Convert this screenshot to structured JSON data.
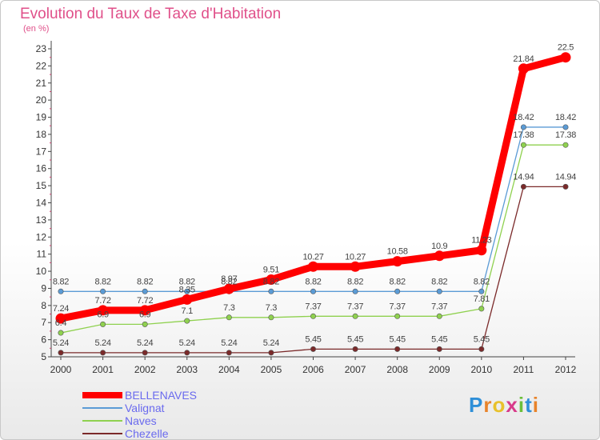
{
  "header": {
    "title": "Evolution du Taux de Taxe d'Habitation",
    "subtitle": "(en %)"
  },
  "logo": {
    "text": "Proxiti",
    "colors": [
      "#2e8fd8",
      "#e8832a",
      "#e8c12a",
      "#d83a8a",
      "#6bbf3a",
      "#2e8fd8",
      "#e8832a"
    ]
  },
  "chart_data": {
    "type": "line",
    "title": "Evolution du Taux de Taxe d'Habitation",
    "ylabel": "(en %)",
    "xlabel": "",
    "categories": [
      "2000",
      "2001",
      "2002",
      "2003",
      "2004",
      "2005",
      "2006",
      "2007",
      "2008",
      "2009",
      "2010",
      "2011",
      "2012"
    ],
    "ylim": [
      5,
      23
    ],
    "yticks": [
      "5",
      "6",
      "7",
      "8",
      "9",
      "10",
      "11",
      "12",
      "13",
      "14",
      "15",
      "16",
      "17",
      "18",
      "19",
      "20",
      "21",
      "22",
      "23"
    ],
    "grid": false,
    "legend_position": "bottom-left",
    "series": [
      {
        "name": "BELLENAVES",
        "color": "#ff0000",
        "values": [
          7.24,
          7.72,
          7.72,
          8.35,
          8.97,
          9.51,
          10.27,
          10.27,
          10.58,
          10.9,
          11.23,
          21.84,
          22.5
        ],
        "labels": [
          "7.24",
          "7.72",
          "7.72",
          "8.35",
          "8.97",
          "9.51",
          "10.27",
          "10.27",
          "10.58",
          "10.9",
          "11.23",
          "21.84",
          "22.5"
        ]
      },
      {
        "name": "Valignat",
        "color": "#5b9bd5",
        "values": [
          8.82,
          8.82,
          8.82,
          8.82,
          8.82,
          8.82,
          8.82,
          8.82,
          8.82,
          8.82,
          8.82,
          18.42,
          18.42
        ],
        "labels": [
          "8.82",
          "8.82",
          "8.82",
          "8.82",
          "8.82",
          "8.82",
          "8.82",
          "8.82",
          "8.82",
          "8.82",
          "8.82",
          "18.42",
          "18.42"
        ]
      },
      {
        "name": "Naves",
        "color": "#8fd14f",
        "values": [
          6.4,
          6.9,
          6.9,
          7.1,
          7.3,
          7.3,
          7.37,
          7.37,
          7.37,
          7.37,
          7.81,
          17.38,
          17.38
        ],
        "labels": [
          "6.4",
          "6.9",
          "6.9",
          "7.1",
          "7.3",
          "7.3",
          "7.37",
          "7.37",
          "7.37",
          "7.37",
          "7.81",
          "17.38",
          "17.38"
        ]
      },
      {
        "name": "Chezelle",
        "color": "#7b2a2a",
        "values": [
          5.24,
          5.24,
          5.24,
          5.24,
          5.24,
          5.24,
          5.45,
          5.45,
          5.45,
          5.45,
          5.45,
          14.94,
          14.94
        ],
        "labels": [
          "5.24",
          "5.24",
          "5.24",
          "5.24",
          "5.24",
          "5.24",
          "5.45",
          "5.45",
          "5.45",
          "5.45",
          "5.45",
          "14.94",
          "14.94"
        ]
      }
    ]
  }
}
